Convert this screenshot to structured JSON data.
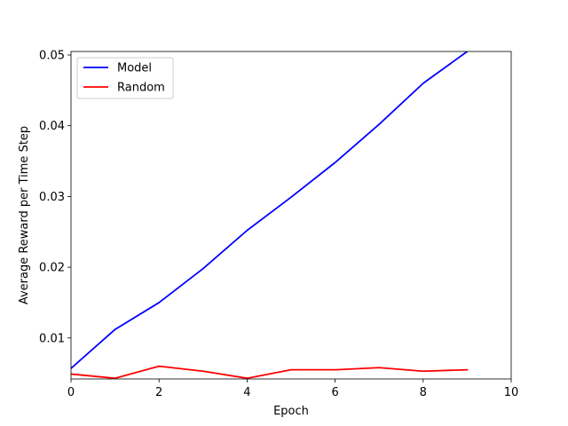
{
  "chart_data": {
    "type": "line",
    "title": "",
    "xlabel": "Epoch",
    "ylabel": "Average Reward per Time Step",
    "xlim": [
      0,
      10
    ],
    "ylim": [
      0.0042,
      0.0505
    ],
    "x_ticks": [
      0,
      2,
      4,
      6,
      8,
      10
    ],
    "y_ticks": [
      0.01,
      0.02,
      0.03,
      0.04,
      0.05
    ],
    "x_tick_labels": [
      "0",
      "2",
      "4",
      "6",
      "8",
      "10"
    ],
    "y_tick_labels": [
      "0.01",
      "0.02",
      "0.03",
      "0.04",
      "0.05"
    ],
    "grid": false,
    "legend_position": "top-left",
    "series": [
      {
        "name": "Model",
        "color": "#0000ff",
        "x": [
          0,
          1,
          2,
          3,
          4,
          5,
          6,
          7,
          8,
          9
        ],
        "values": [
          0.0057,
          0.0112,
          0.015,
          0.0198,
          0.0252,
          0.0299,
          0.0348,
          0.0402,
          0.046,
          0.0505
        ]
      },
      {
        "name": "Random",
        "color": "#ff0000",
        "x": [
          0,
          1,
          2,
          3,
          4,
          5,
          6,
          7,
          8,
          9
        ],
        "values": [
          0.0049,
          0.0043,
          0.006,
          0.0053,
          0.0043,
          0.0055,
          0.0055,
          0.0058,
          0.0053,
          0.0055
        ]
      }
    ]
  }
}
